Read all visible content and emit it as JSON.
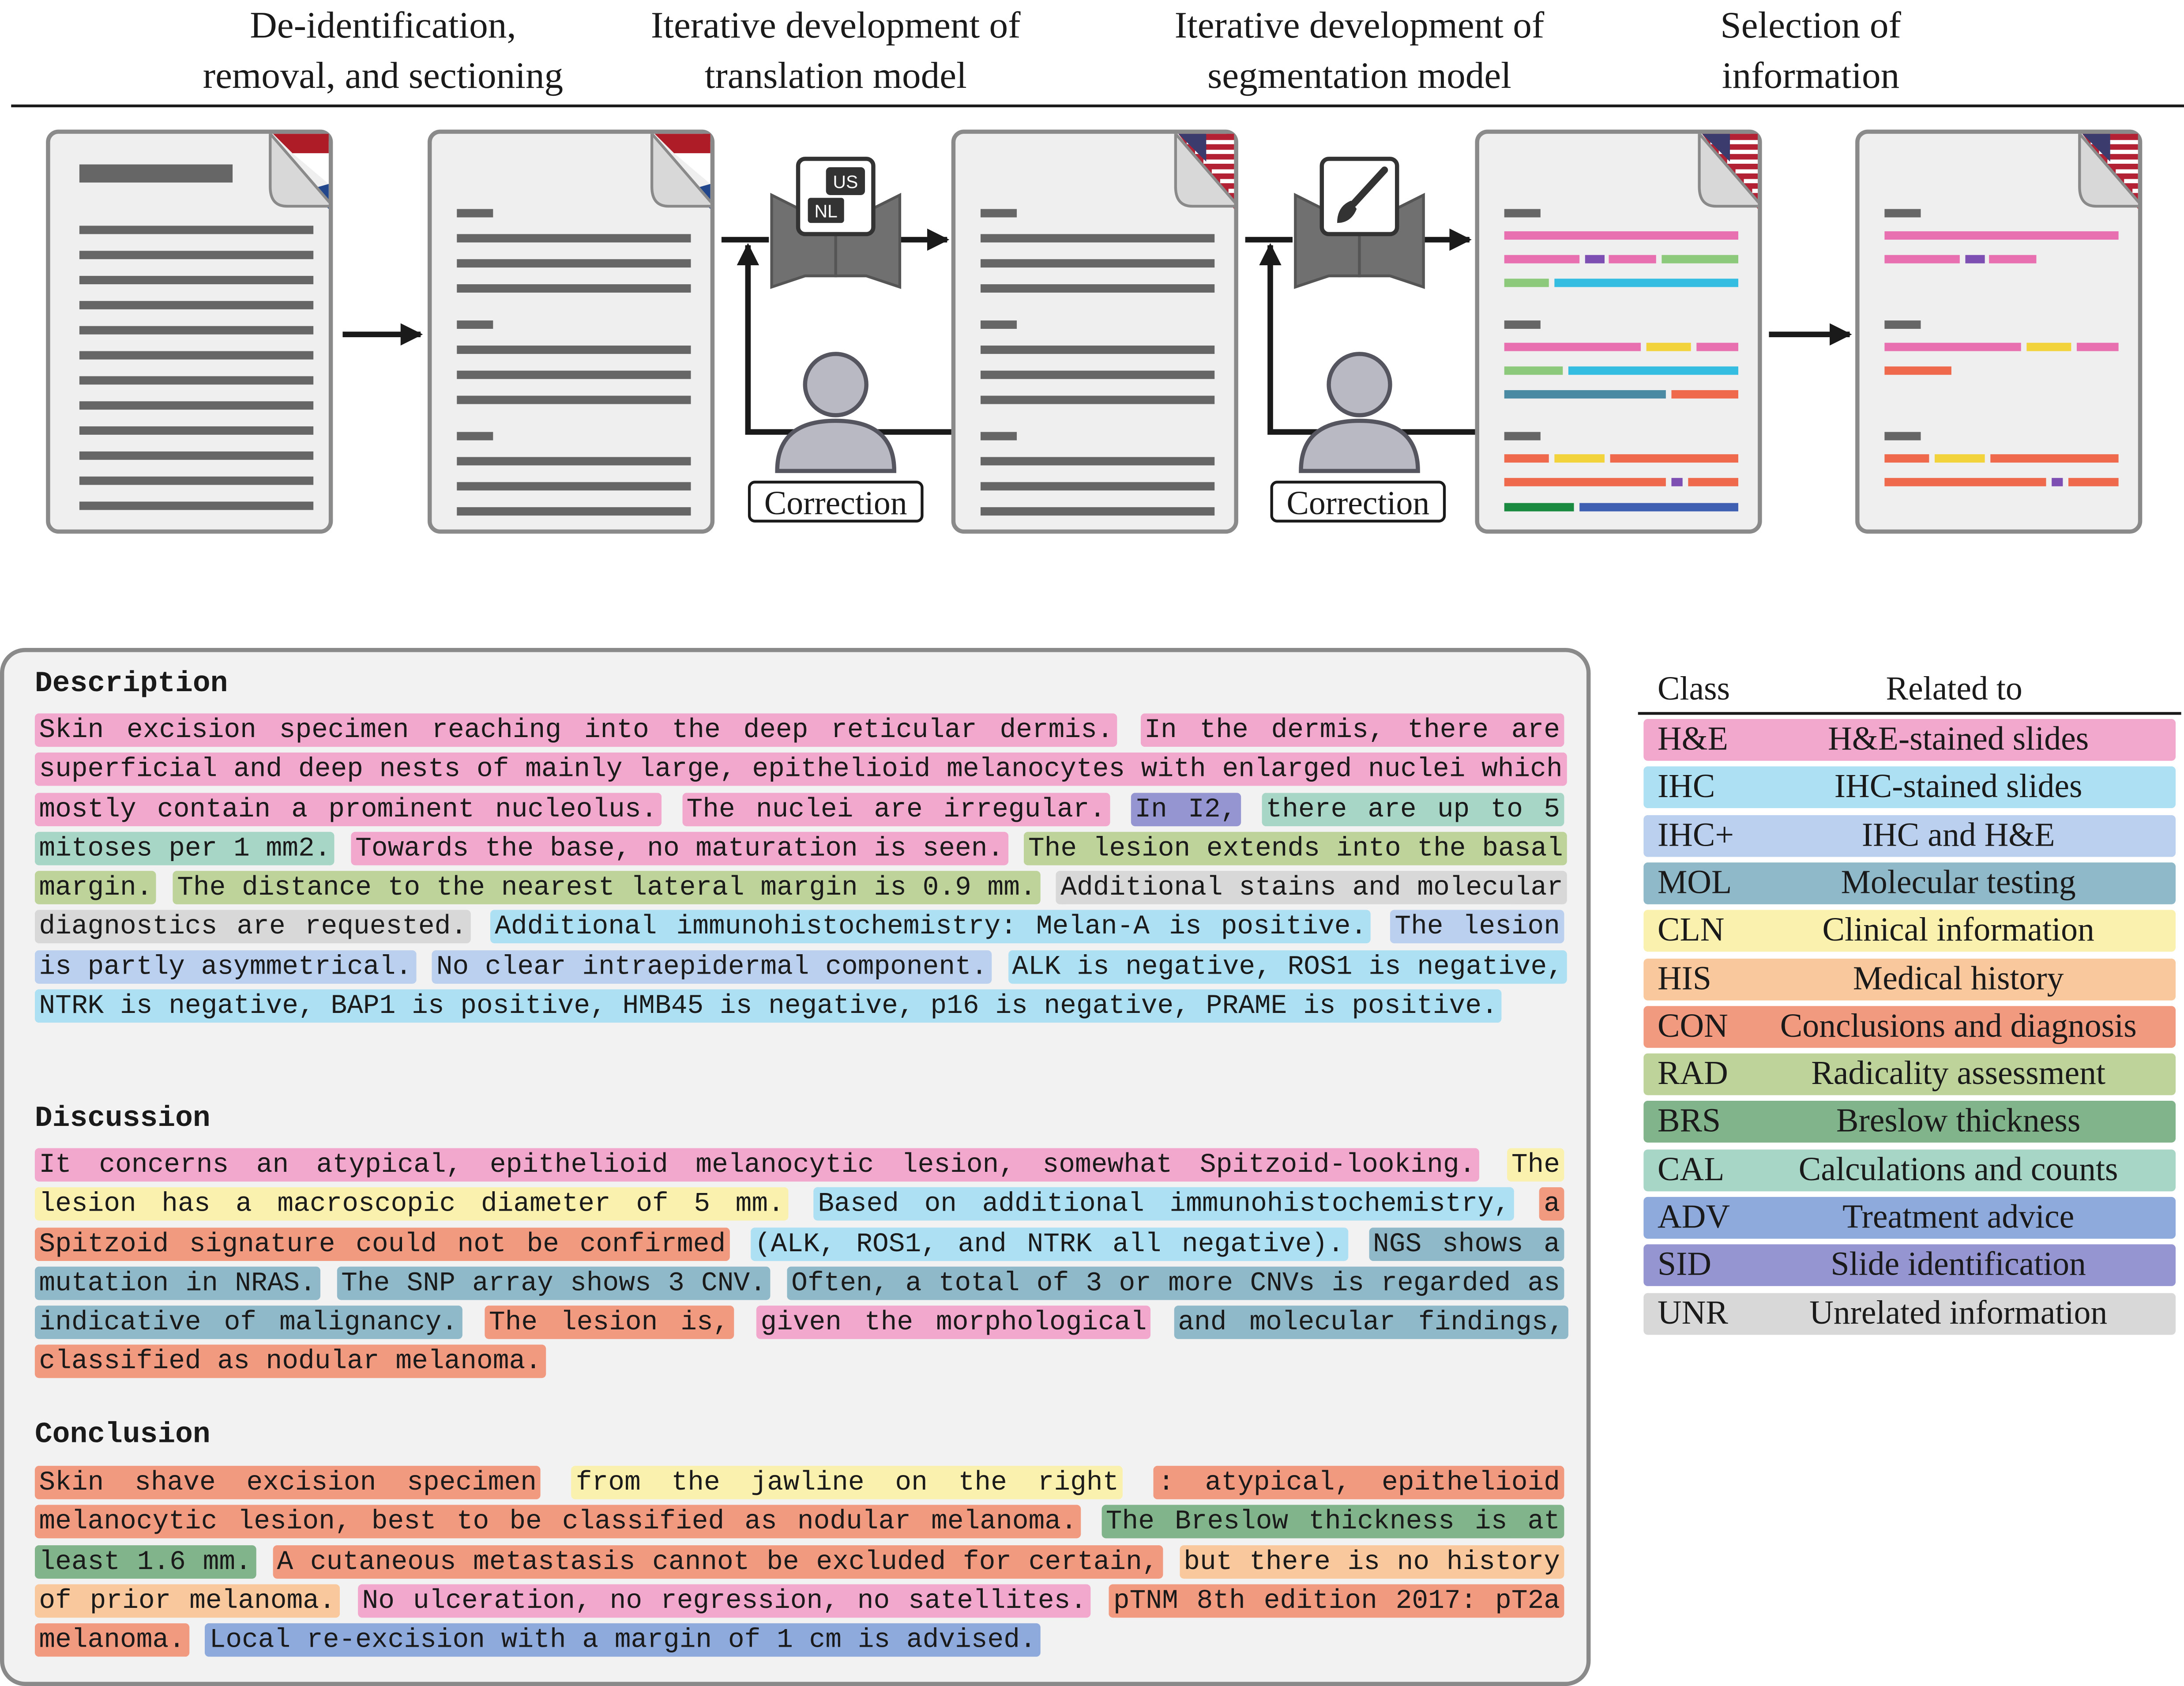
{
  "colors": {
    "HE": "#f2a7cd",
    "IHC": "#ade0f3",
    "IHCp": "#bad0ee",
    "MOL": "#8fb9c9",
    "CLN": "#fbf1ae",
    "HIS": "#f9c89c",
    "CON": "#f29a80",
    "RAD": "#bdd39a",
    "BRS": "#82b48b",
    "CAL": "#a7d5c6",
    "ADV": "#8ea9dc",
    "SID": "#9595d1",
    "UNR": "#d8d8d8"
  },
  "stages": [
    {
      "label": "De-identification,\nremoval, and sectioning"
    },
    {
      "label": "Iterative development of\ntranslation model"
    },
    {
      "label": "Iterative development of\nsegmentation model"
    },
    {
      "label": "Selection of\ninformation"
    }
  ],
  "badges": {
    "translate_top": "US",
    "translate_bottom": "NL"
  },
  "correction_label": "Correction",
  "report": {
    "sections": [
      {
        "title": "Description",
        "segments": [
          {
            "text": "Skin excision specimen reaching into the deep reticular dermis.",
            "class": "HE"
          },
          {
            "text": "In the dermis, there are superficial and deep nests of mainly large, epithelioid melanocytes with enlarged nuclei which mostly contain a prominent nucleolus.",
            "class": "HE"
          },
          {
            "text": "The nuclei are irregular.",
            "class": "HE"
          },
          {
            "text": "In I2,",
            "class": "SID"
          },
          {
            "text": "there are up to 5 mitoses per 1 mm2.",
            "class": "CAL"
          },
          {
            "text": "Towards the base, no maturation is seen.",
            "class": "HE"
          },
          {
            "text": "The lesion extends into the basal margin.",
            "class": "RAD"
          },
          {
            "text": "The distance to the nearest lateral margin is 0.9 mm.",
            "class": "RAD"
          },
          {
            "text": "Additional stains and molecular diagnostics are requested.",
            "class": "UNR"
          },
          {
            "text": "Additional immunohistochemistry: Melan-A is positive.",
            "class": "IHC"
          },
          {
            "text": "The lesion is partly asymmetrical.",
            "class": "IHCp"
          },
          {
            "text": "No clear intraepidermal component.",
            "class": "IHCp"
          },
          {
            "text": "ALK is negative, ROS1 is negative, NTRK is negative, BAP1 is positive, HMB45 is negative, p16 is negative, PRAME is positive.",
            "class": "IHC"
          }
        ]
      },
      {
        "title": "Discussion",
        "segments": [
          {
            "text": "It concerns an atypical, epithelioid melanocytic lesion, somewhat Spitzoid-looking.",
            "class": "HE"
          },
          {
            "text": "The lesion has a macroscopic diameter of 5 mm.",
            "class": "CLN"
          },
          {
            "text": "Based on additional immunohistochemistry,",
            "class": "IHC"
          },
          {
            "text": "a Spitzoid signature could not be confirmed",
            "class": "CON"
          },
          {
            "text": "(ALK, ROS1, and NTRK all negative).",
            "class": "IHC"
          },
          {
            "text": "NGS shows a mutation in NRAS.",
            "class": "MOL"
          },
          {
            "text": "The SNP array shows 3 CNV.",
            "class": "MOL"
          },
          {
            "text": "Often, a total of 3 or more CNVs is regarded as indicative of malignancy.",
            "class": "MOL"
          },
          {
            "text": "The lesion is,",
            "class": "CON"
          },
          {
            "text": "given the morphological",
            "class": "HE"
          },
          {
            "text": "and molecular findings,",
            "class": "MOL"
          },
          {
            "text": "classified as nodular melanoma.",
            "class": "CON"
          }
        ]
      },
      {
        "title": "Conclusion",
        "segments": [
          {
            "text": "Skin shave excision specimen",
            "class": "CON"
          },
          {
            "text": "from the jawline on the right",
            "class": "CLN"
          },
          {
            "text": ": atypical, epithelioid melanocytic lesion, best to be classified as nodular melanoma.",
            "class": "CON"
          },
          {
            "text": "The Breslow thickness is at least 1.6 mm.",
            "class": "BRS"
          },
          {
            "text": "A cutaneous metastasis cannot be excluded for certain,",
            "class": "CON"
          },
          {
            "text": "but there is no history of prior melanoma.",
            "class": "HIS"
          },
          {
            "text": "No ulceration, no regression, no satellites.",
            "class": "HE"
          },
          {
            "text": "pTNM 8th edition 2017: pT2a melanoma.",
            "class": "CON"
          },
          {
            "text": "Local re-excision with a margin of 1 cm is advised.",
            "class": "ADV"
          }
        ]
      }
    ]
  },
  "legend": {
    "header_class": "Class",
    "header_related": "Related to",
    "rows": [
      {
        "key": "HE",
        "code": "H&E",
        "desc": "H&E-stained slides"
      },
      {
        "key": "IHC",
        "code": "IHC",
        "desc": "IHC-stained slides"
      },
      {
        "key": "IHCp",
        "code": "IHC+",
        "desc": "IHC and H&E"
      },
      {
        "key": "MOL",
        "code": "MOL",
        "desc": "Molecular testing"
      },
      {
        "key": "CLN",
        "code": "CLN",
        "desc": "Clinical information"
      },
      {
        "key": "HIS",
        "code": "HIS",
        "desc": "Medical history"
      },
      {
        "key": "CON",
        "code": "CON",
        "desc": "Conclusions and diagnosis"
      },
      {
        "key": "RAD",
        "code": "RAD",
        "desc": "Radicality assessment"
      },
      {
        "key": "BRS",
        "code": "BRS",
        "desc": "Breslow thickness"
      },
      {
        "key": "CAL",
        "code": "CAL",
        "desc": "Calculations and counts"
      },
      {
        "key": "ADV",
        "code": "ADV",
        "desc": "Treatment advice"
      },
      {
        "key": "SID",
        "code": "SID",
        "desc": "Slide identification"
      },
      {
        "key": "UNR",
        "code": "UNR",
        "desc": "Unrelated information"
      }
    ]
  }
}
